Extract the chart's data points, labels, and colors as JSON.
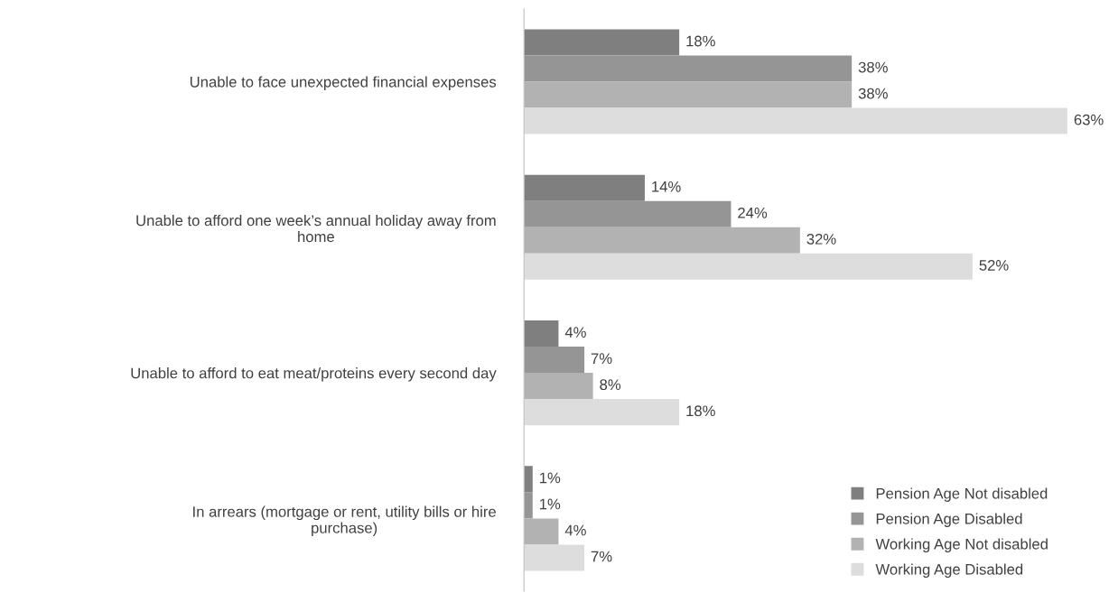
{
  "chart_data": {
    "type": "bar",
    "orientation": "horizontal",
    "grid": false,
    "legend": "bottom right",
    "categories": [
      "Unable to face unexpected financial expenses",
      "Unable to afford one week’s annual holiday away from\nhome",
      "Unable to afford to eat meat/proteins every second day",
      "In arrears (mortgage or rent, utility bills or hire\npurchase)"
    ],
    "series": [
      {
        "name": "Pension Age Not disabled",
        "color": "#7f7f7f",
        "values": [
          18,
          14,
          4,
          1
        ],
        "value_labels": [
          "18%",
          "14%",
          "4%",
          "1%"
        ]
      },
      {
        "name": "Pension Age Disabled",
        "color": "#959595",
        "values": [
          38,
          24,
          7,
          1
        ],
        "value_labels": [
          "38%",
          "24%",
          "7%",
          "1%"
        ]
      },
      {
        "name": "Working Age Not disabled",
        "color": "#b2b2b2",
        "values": [
          38,
          32,
          8,
          4
        ],
        "value_labels": [
          "38%",
          "32%",
          "8%",
          "4%"
        ]
      },
      {
        "name": "Working Age Disabled",
        "color": "#dddddd",
        "values": [
          63,
          52,
          18,
          7
        ],
        "value_labels": [
          "63%",
          "52%",
          "18%",
          "7%"
        ]
      }
    ]
  }
}
